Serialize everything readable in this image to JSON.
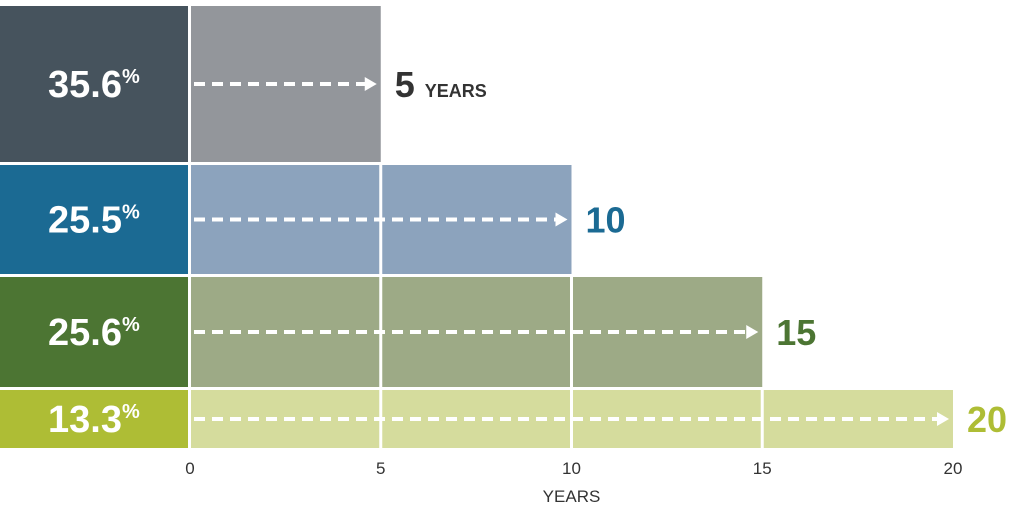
{
  "chart_data": {
    "type": "bar",
    "orientation": "horizontal",
    "xlabel": "YEARS",
    "x_ticks": [
      0,
      5,
      10,
      15,
      20
    ],
    "xlim": [
      0,
      20
    ],
    "grid": false,
    "legend": "none",
    "rows": [
      {
        "percent": "35.6",
        "percent_sign": "%",
        "years": 5,
        "end_label": "5",
        "end_unit": "YEARS",
        "label_color": "#46535d",
        "bar_color": "#93969b"
      },
      {
        "percent": "25.5",
        "percent_sign": "%",
        "years": 10,
        "end_label": "10",
        "end_unit": "",
        "label_color": "#1b6a93",
        "bar_color": "#8ca3bd"
      },
      {
        "percent": "25.6",
        "percent_sign": "%",
        "years": 15,
        "end_label": "15",
        "end_unit": "",
        "label_color": "#4c7533",
        "bar_color": "#9daa86"
      },
      {
        "percent": "13.3",
        "percent_sign": "%",
        "years": 20,
        "end_label": "20",
        "end_unit": "",
        "label_color": "#aebd35",
        "bar_color": "#d5dc9d"
      }
    ]
  },
  "colors": {
    "left_block": [
      "#46535d",
      "#1b6a93",
      "#4c7533",
      "#aebd35"
    ],
    "end_label": [
      "#333333",
      "#1b6a93",
      "#4c7533",
      "#aebd35"
    ],
    "bars": [
      "#93969b",
      "#8ca3bd",
      "#9daa86",
      "#d5dc9d"
    ],
    "arrow": "#ffffff",
    "separator": "#ffffff",
    "axis_text": "#333333"
  }
}
